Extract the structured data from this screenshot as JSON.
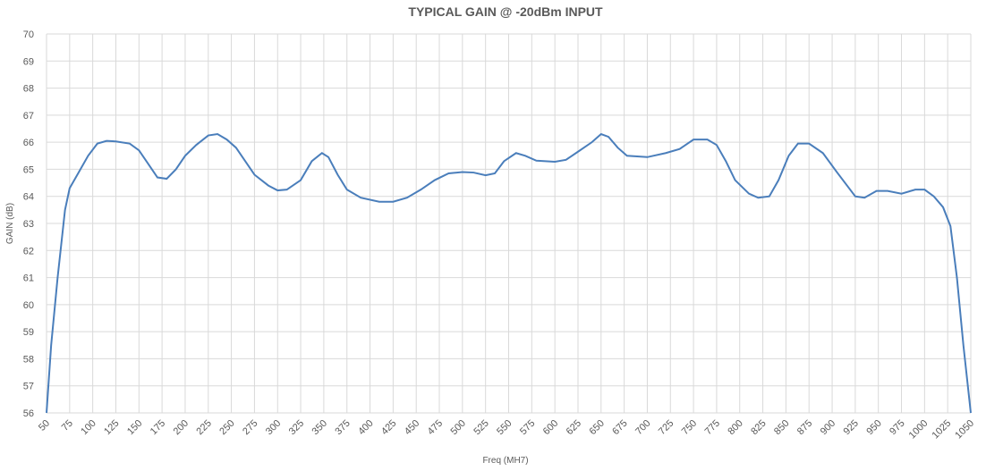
{
  "chart_data": {
    "type": "line",
    "title": "TYPICAL GAIN @ -20dBm INPUT",
    "x_label": "Freq (MH7)",
    "y_label": "GAIN (dB)",
    "x": [
      50,
      55,
      62,
      70,
      75,
      85,
      95,
      105,
      115,
      125,
      140,
      150,
      160,
      170,
      180,
      190,
      200,
      212,
      225,
      235,
      245,
      255,
      265,
      275,
      290,
      300,
      310,
      325,
      337,
      348,
      355,
      365,
      375,
      390,
      410,
      425,
      440,
      455,
      470,
      485,
      500,
      512,
      525,
      535,
      545,
      558,
      568,
      580,
      600,
      612,
      625,
      640,
      650,
      658,
      668,
      678,
      700,
      720,
      735,
      750,
      765,
      775,
      785,
      795,
      810,
      820,
      832,
      842,
      853,
      863,
      875,
      890,
      905,
      925,
      935,
      948,
      960,
      975,
      990,
      1000,
      1010,
      1020,
      1028,
      1035,
      1042,
      1050
    ],
    "series": [
      {
        "name": "Gain",
        "color": "#4a7ebb",
        "values": [
          56,
          58.5,
          61,
          63.5,
          64.3,
          64.9,
          65.5,
          65.95,
          66.05,
          66.03,
          65.95,
          65.7,
          65.2,
          64.7,
          64.65,
          65.0,
          65.5,
          65.9,
          66.25,
          66.3,
          66.1,
          65.8,
          65.3,
          64.8,
          64.4,
          64.22,
          64.25,
          64.6,
          65.3,
          65.6,
          65.45,
          64.8,
          64.25,
          63.95,
          63.8,
          63.8,
          63.95,
          64.25,
          64.6,
          64.85,
          64.9,
          64.88,
          64.78,
          64.85,
          65.3,
          65.6,
          65.5,
          65.32,
          65.28,
          65.35,
          65.65,
          66.0,
          66.3,
          66.2,
          65.8,
          65.5,
          65.45,
          65.6,
          65.75,
          66.1,
          66.1,
          65.9,
          65.3,
          64.6,
          64.1,
          63.95,
          64.0,
          64.6,
          65.5,
          65.95,
          65.95,
          65.6,
          64.9,
          64.0,
          63.95,
          64.2,
          64.2,
          64.1,
          64.25,
          64.25,
          64.0,
          63.6,
          62.9,
          61.0,
          58.5,
          56
        ]
      }
    ],
    "xlim": [
      50,
      1050
    ],
    "xticks": [
      50,
      75,
      100,
      125,
      150,
      175,
      200,
      225,
      250,
      275,
      300,
      325,
      350,
      375,
      400,
      425,
      450,
      475,
      500,
      525,
      550,
      575,
      600,
      625,
      650,
      675,
      700,
      725,
      750,
      775,
      800,
      825,
      850,
      875,
      900,
      925,
      950,
      975,
      1000,
      1025,
      1050
    ],
    "ylim": [
      56,
      70
    ],
    "yticks": [
      56,
      57,
      58,
      59,
      60,
      61,
      62,
      63,
      64,
      65,
      66,
      67,
      68,
      69,
      70
    ],
    "grid": true
  }
}
